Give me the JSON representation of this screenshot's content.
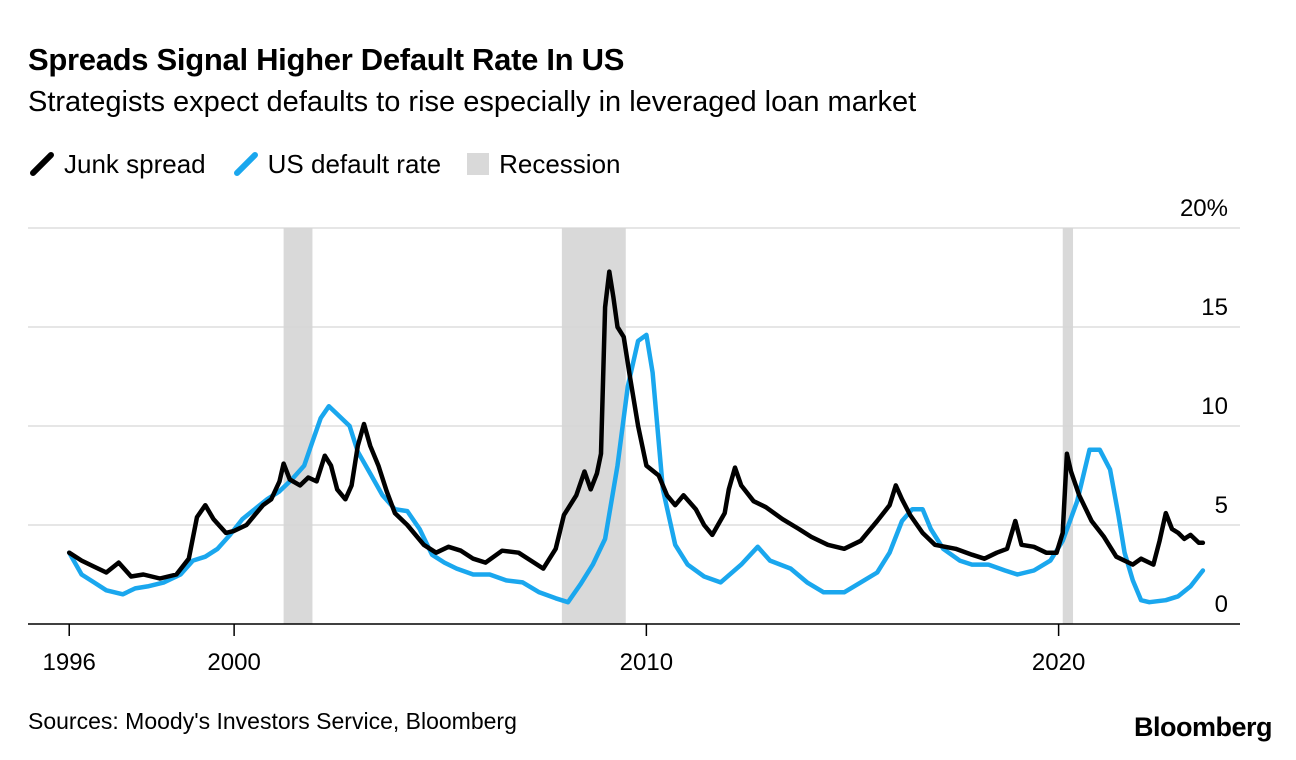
{
  "header": {
    "title": "Spreads Signal Higher Default Rate In US",
    "subtitle": "Strategists expect defaults to rise especially in leveraged loan market"
  },
  "legend": {
    "items": [
      {
        "label": "Junk spread",
        "color": "#000000",
        "icon": "line-swatch-icon"
      },
      {
        "label": "US default rate",
        "color": "#1aa7ee",
        "icon": "line-swatch-icon"
      },
      {
        "label": "Recession",
        "color": "#d9d9d9",
        "icon": "rect-swatch-icon"
      }
    ]
  },
  "footer": {
    "source": "Sources: Moody's Investors Service, Bloomberg",
    "brand": "Bloomberg"
  },
  "chart_data": {
    "type": "line",
    "title": "Spreads Signal Higher Default Rate In US",
    "xlim": [
      1995.0,
      2024.4
    ],
    "ylim": [
      0,
      20
    ],
    "grid": true,
    "legend_position": "top-left",
    "y_axis_side": "right",
    "x_ticks": [
      {
        "value": 1996,
        "label": "1996"
      },
      {
        "value": 2000,
        "label": "2000"
      },
      {
        "value": 2010,
        "label": "2010"
      },
      {
        "value": 2020,
        "label": "2020"
      }
    ],
    "y_ticks": [
      {
        "value": 0,
        "label": "0"
      },
      {
        "value": 5,
        "label": "5"
      },
      {
        "value": 10,
        "label": "10"
      },
      {
        "value": 15,
        "label": "15"
      },
      {
        "value": 20,
        "label": "20%"
      }
    ],
    "recessions": [
      {
        "start": 2001.2,
        "end": 2001.9
      },
      {
        "start": 2007.95,
        "end": 2009.5
      },
      {
        "start": 2020.1,
        "end": 2020.35
      }
    ],
    "series": [
      {
        "name": "Junk spread",
        "color": "#000000",
        "points": [
          [
            1996.0,
            3.6
          ],
          [
            1996.3,
            3.2
          ],
          [
            1996.6,
            2.9
          ],
          [
            1996.9,
            2.6
          ],
          [
            1997.2,
            3.1
          ],
          [
            1997.5,
            2.4
          ],
          [
            1997.8,
            2.5
          ],
          [
            1998.2,
            2.3
          ],
          [
            1998.6,
            2.5
          ],
          [
            1998.9,
            3.3
          ],
          [
            1999.1,
            5.4
          ],
          [
            1999.3,
            6.0
          ],
          [
            1999.5,
            5.3
          ],
          [
            1999.8,
            4.6
          ],
          [
            2000.0,
            4.7
          ],
          [
            2000.3,
            5.0
          ],
          [
            2000.5,
            5.5
          ],
          [
            2000.7,
            6.0
          ],
          [
            2000.9,
            6.3
          ],
          [
            2001.1,
            7.2
          ],
          [
            2001.2,
            8.1
          ],
          [
            2001.35,
            7.3
          ],
          [
            2001.6,
            7.0
          ],
          [
            2001.8,
            7.4
          ],
          [
            2002.0,
            7.2
          ],
          [
            2002.2,
            8.5
          ],
          [
            2002.35,
            8.0
          ],
          [
            2002.5,
            6.8
          ],
          [
            2002.7,
            6.3
          ],
          [
            2002.85,
            7.0
          ],
          [
            2003.0,
            9.0
          ],
          [
            2003.15,
            10.1
          ],
          [
            2003.3,
            9.0
          ],
          [
            2003.5,
            8.0
          ],
          [
            2003.7,
            6.7
          ],
          [
            2003.9,
            5.6
          ],
          [
            2004.2,
            5.0
          ],
          [
            2004.6,
            4.0
          ],
          [
            2004.9,
            3.6
          ],
          [
            2005.2,
            3.9
          ],
          [
            2005.5,
            3.7
          ],
          [
            2005.8,
            3.3
          ],
          [
            2006.1,
            3.1
          ],
          [
            2006.5,
            3.7
          ],
          [
            2006.9,
            3.6
          ],
          [
            2007.2,
            3.2
          ],
          [
            2007.5,
            2.8
          ],
          [
            2007.8,
            3.8
          ],
          [
            2008.0,
            5.5
          ],
          [
            2008.3,
            6.5
          ],
          [
            2008.5,
            7.7
          ],
          [
            2008.65,
            6.8
          ],
          [
            2008.8,
            7.6
          ],
          [
            2008.9,
            8.6
          ],
          [
            2009.0,
            16.0
          ],
          [
            2009.1,
            17.8
          ],
          [
            2009.2,
            16.5
          ],
          [
            2009.3,
            15.0
          ],
          [
            2009.45,
            14.5
          ],
          [
            2009.6,
            12.5
          ],
          [
            2009.8,
            10.0
          ],
          [
            2010.0,
            8.0
          ],
          [
            2010.3,
            7.5
          ],
          [
            2010.5,
            6.5
          ],
          [
            2010.7,
            6.0
          ],
          [
            2010.9,
            6.5
          ],
          [
            2011.2,
            5.8
          ],
          [
            2011.4,
            5.0
          ],
          [
            2011.6,
            4.5
          ],
          [
            2011.9,
            5.6
          ],
          [
            2012.0,
            6.8
          ],
          [
            2012.15,
            7.9
          ],
          [
            2012.3,
            7.0
          ],
          [
            2012.6,
            6.2
          ],
          [
            2012.9,
            5.9
          ],
          [
            2013.3,
            5.3
          ],
          [
            2013.7,
            4.8
          ],
          [
            2014.0,
            4.4
          ],
          [
            2014.4,
            4.0
          ],
          [
            2014.8,
            3.8
          ],
          [
            2015.2,
            4.2
          ],
          [
            2015.6,
            5.2
          ],
          [
            2015.9,
            6.0
          ],
          [
            2016.05,
            7.0
          ],
          [
            2016.2,
            6.3
          ],
          [
            2016.4,
            5.5
          ],
          [
            2016.7,
            4.6
          ],
          [
            2017.0,
            4.0
          ],
          [
            2017.5,
            3.8
          ],
          [
            2017.9,
            3.5
          ],
          [
            2018.2,
            3.3
          ],
          [
            2018.5,
            3.6
          ],
          [
            2018.75,
            3.8
          ],
          [
            2018.95,
            5.2
          ],
          [
            2019.1,
            4.0
          ],
          [
            2019.4,
            3.9
          ],
          [
            2019.7,
            3.6
          ],
          [
            2019.95,
            3.6
          ],
          [
            2020.1,
            4.6
          ],
          [
            2020.2,
            8.6
          ],
          [
            2020.3,
            7.7
          ],
          [
            2020.5,
            6.5
          ],
          [
            2020.8,
            5.2
          ],
          [
            2021.1,
            4.4
          ],
          [
            2021.4,
            3.4
          ],
          [
            2021.8,
            3.0
          ],
          [
            2022.0,
            3.3
          ],
          [
            2022.3,
            3.0
          ],
          [
            2022.45,
            4.2
          ],
          [
            2022.6,
            5.6
          ],
          [
            2022.75,
            4.8
          ],
          [
            2022.9,
            4.6
          ],
          [
            2023.05,
            4.3
          ],
          [
            2023.2,
            4.5
          ],
          [
            2023.4,
            4.1
          ],
          [
            2023.5,
            4.1
          ]
        ]
      },
      {
        "name": "US default rate",
        "color": "#1aa7ee",
        "points": [
          [
            1996.0,
            3.6
          ],
          [
            1996.3,
            2.5
          ],
          [
            1996.6,
            2.1
          ],
          [
            1996.9,
            1.7
          ],
          [
            1997.3,
            1.5
          ],
          [
            1997.6,
            1.8
          ],
          [
            1997.9,
            1.9
          ],
          [
            1998.3,
            2.1
          ],
          [
            1998.7,
            2.5
          ],
          [
            1999.0,
            3.2
          ],
          [
            1999.3,
            3.4
          ],
          [
            1999.6,
            3.8
          ],
          [
            1999.9,
            4.5
          ],
          [
            2000.2,
            5.3
          ],
          [
            2000.5,
            5.8
          ],
          [
            2000.8,
            6.3
          ],
          [
            2001.1,
            6.7
          ],
          [
            2001.4,
            7.3
          ],
          [
            2001.7,
            8.0
          ],
          [
            2001.9,
            9.2
          ],
          [
            2002.1,
            10.4
          ],
          [
            2002.3,
            11.0
          ],
          [
            2002.5,
            10.6
          ],
          [
            2002.8,
            10.0
          ],
          [
            2003.0,
            8.7
          ],
          [
            2003.3,
            7.6
          ],
          [
            2003.6,
            6.5
          ],
          [
            2003.9,
            5.8
          ],
          [
            2004.2,
            5.7
          ],
          [
            2004.5,
            4.8
          ],
          [
            2004.8,
            3.5
          ],
          [
            2005.1,
            3.1
          ],
          [
            2005.4,
            2.8
          ],
          [
            2005.8,
            2.5
          ],
          [
            2006.2,
            2.5
          ],
          [
            2006.6,
            2.2
          ],
          [
            2007.0,
            2.1
          ],
          [
            2007.4,
            1.6
          ],
          [
            2007.8,
            1.3
          ],
          [
            2008.1,
            1.1
          ],
          [
            2008.4,
            2.0
          ],
          [
            2008.7,
            3.0
          ],
          [
            2009.0,
            4.3
          ],
          [
            2009.3,
            8.0
          ],
          [
            2009.55,
            12.0
          ],
          [
            2009.8,
            14.3
          ],
          [
            2010.0,
            14.6
          ],
          [
            2010.15,
            12.7
          ],
          [
            2010.4,
            6.8
          ],
          [
            2010.7,
            4.0
          ],
          [
            2011.0,
            3.0
          ],
          [
            2011.4,
            2.4
          ],
          [
            2011.8,
            2.1
          ],
          [
            2012.3,
            3.0
          ],
          [
            2012.7,
            3.9
          ],
          [
            2013.0,
            3.2
          ],
          [
            2013.5,
            2.8
          ],
          [
            2013.9,
            2.1
          ],
          [
            2014.3,
            1.6
          ],
          [
            2014.8,
            1.6
          ],
          [
            2015.2,
            2.1
          ],
          [
            2015.6,
            2.6
          ],
          [
            2015.9,
            3.6
          ],
          [
            2016.2,
            5.2
          ],
          [
            2016.45,
            5.8
          ],
          [
            2016.7,
            5.8
          ],
          [
            2016.9,
            4.8
          ],
          [
            2017.2,
            3.8
          ],
          [
            2017.6,
            3.2
          ],
          [
            2017.9,
            3.0
          ],
          [
            2018.3,
            3.0
          ],
          [
            2018.7,
            2.7
          ],
          [
            2019.0,
            2.5
          ],
          [
            2019.4,
            2.7
          ],
          [
            2019.8,
            3.2
          ],
          [
            2020.1,
            4.2
          ],
          [
            2020.45,
            6.2
          ],
          [
            2020.75,
            8.8
          ],
          [
            2021.0,
            8.8
          ],
          [
            2021.25,
            7.8
          ],
          [
            2021.45,
            5.5
          ],
          [
            2021.6,
            3.6
          ],
          [
            2021.8,
            2.2
          ],
          [
            2022.0,
            1.2
          ],
          [
            2022.2,
            1.1
          ],
          [
            2022.6,
            1.2
          ],
          [
            2022.9,
            1.4
          ],
          [
            2023.2,
            1.9
          ],
          [
            2023.5,
            2.7
          ]
        ]
      }
    ]
  }
}
